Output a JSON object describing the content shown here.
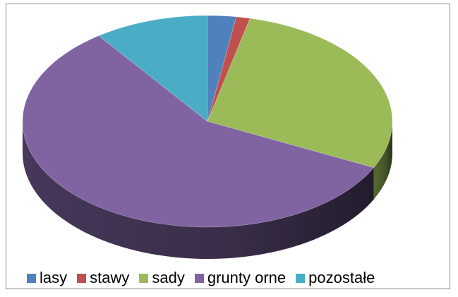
{
  "chart_data": {
    "type": "pie",
    "variant": "3d",
    "title": "",
    "legend_position": "bottom",
    "categories": [
      "lasy",
      "stawy",
      "sady",
      "grunty orne",
      "pozostałe"
    ],
    "values": [
      2.5,
      1.2,
      28.5,
      57.8,
      10.0
    ],
    "colors": [
      "#4F81BD",
      "#C0504D",
      "#9BBB59",
      "#8064A2",
      "#4BACC6"
    ]
  }
}
